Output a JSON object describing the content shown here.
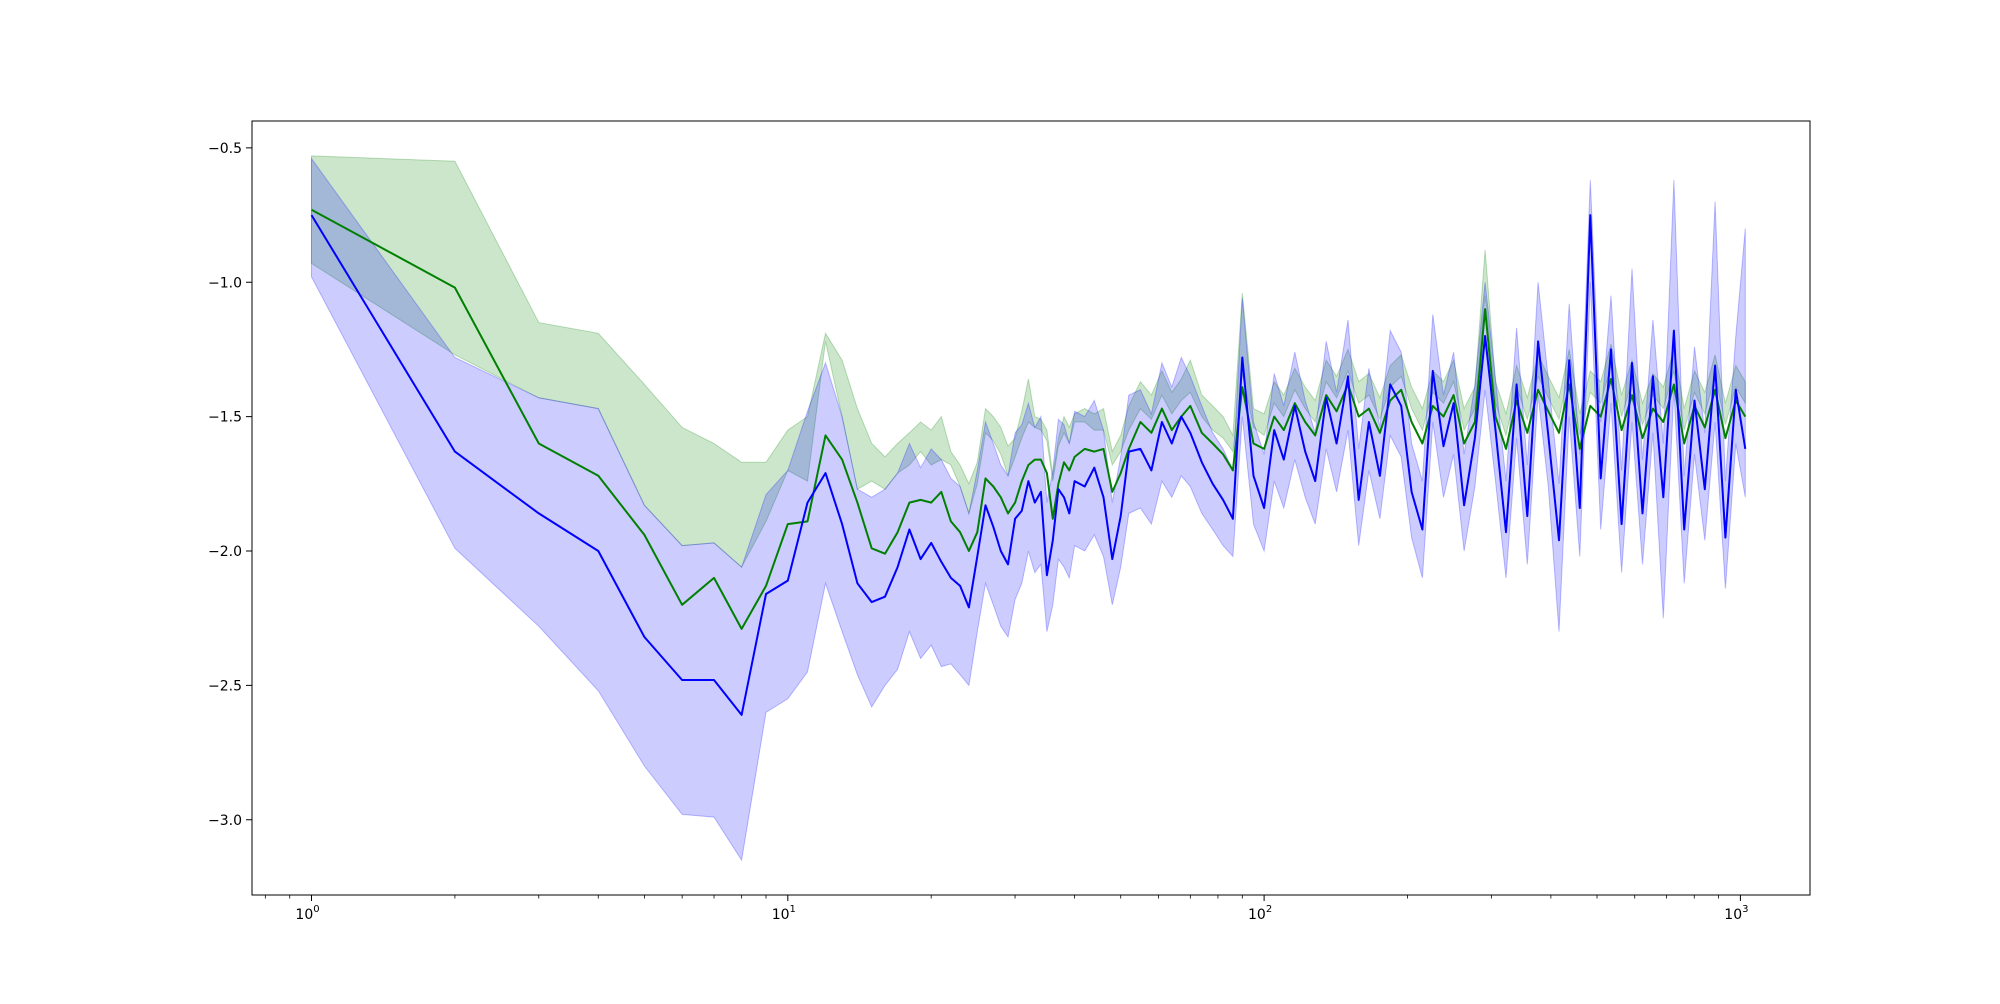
{
  "chart_data": {
    "type": "line",
    "xscale": "log",
    "xlim": [
      0.75,
      1400
    ],
    "ylim": [
      -3.28,
      -0.4
    ],
    "xticks": [
      {
        "value": 1,
        "base": "10",
        "exp": "0"
      },
      {
        "value": 10,
        "base": "10",
        "exp": "1"
      },
      {
        "value": 100,
        "base": "10",
        "exp": "2"
      },
      {
        "value": 1000,
        "base": "10",
        "exp": "3"
      }
    ],
    "yticks": [
      {
        "value": -0.5,
        "label": "−0.5"
      },
      {
        "value": -1.0,
        "label": "−1.0"
      },
      {
        "value": -1.5,
        "label": "−1.5"
      },
      {
        "value": -2.0,
        "label": "−2.0"
      },
      {
        "value": -2.5,
        "label": "−2.5"
      },
      {
        "value": -3.0,
        "label": "−3.0"
      }
    ],
    "grid": false,
    "legend": "none",
    "series": [
      {
        "color": "#008000",
        "band_alpha": 0.2,
        "x": [
          1,
          2,
          3,
          4,
          5,
          6,
          7,
          8,
          9,
          10,
          11,
          12,
          13,
          14,
          15,
          16,
          17,
          18,
          19,
          20,
          21,
          22,
          23,
          24,
          25,
          26,
          27,
          28,
          29,
          30,
          31,
          32,
          33,
          34,
          35,
          36,
          37,
          38,
          39,
          40,
          42,
          44,
          46,
          48,
          50,
          52,
          55,
          58,
          61,
          64,
          67,
          70,
          74,
          78,
          82,
          86,
          90,
          95,
          100,
          105,
          110,
          116,
          122,
          128,
          135,
          142,
          150,
          158,
          166,
          175,
          184,
          194,
          204,
          215,
          226,
          238,
          250,
          263,
          277,
          291,
          306,
          322,
          339,
          357,
          376,
          395,
          416,
          437,
          460,
          484,
          509,
          535,
          563,
          592,
          623,
          655,
          689,
          725,
          762,
          801,
          842,
          885,
          930,
          978,
          1024
        ],
        "y": [
          -0.73,
          -1.02,
          -1.6,
          -1.72,
          -1.94,
          -2.2,
          -2.1,
          -2.29,
          -2.13,
          -1.9,
          -1.89,
          -1.57,
          -1.66,
          -1.82,
          -1.99,
          -2.01,
          -1.93,
          -1.82,
          -1.81,
          -1.82,
          -1.78,
          -1.89,
          -1.93,
          -2.0,
          -1.93,
          -1.73,
          -1.76,
          -1.8,
          -1.86,
          -1.82,
          -1.74,
          -1.68,
          -1.66,
          -1.66,
          -1.71,
          -1.88,
          -1.75,
          -1.67,
          -1.7,
          -1.65,
          -1.62,
          -1.63,
          -1.62,
          -1.78,
          -1.71,
          -1.62,
          -1.52,
          -1.56,
          -1.47,
          -1.55,
          -1.5,
          -1.46,
          -1.56,
          -1.6,
          -1.64,
          -1.7,
          -1.39,
          -1.6,
          -1.62,
          -1.5,
          -1.55,
          -1.45,
          -1.52,
          -1.57,
          -1.42,
          -1.48,
          -1.38,
          -1.5,
          -1.47,
          -1.56,
          -1.44,
          -1.4,
          -1.52,
          -1.6,
          -1.46,
          -1.5,
          -1.42,
          -1.6,
          -1.52,
          -1.1,
          -1.5,
          -1.62,
          -1.44,
          -1.56,
          -1.4,
          -1.48,
          -1.56,
          -1.38,
          -1.62,
          -1.46,
          -1.5,
          -1.36,
          -1.55,
          -1.42,
          -1.58,
          -1.47,
          -1.52,
          -1.38,
          -1.6,
          -1.46,
          -1.54,
          -1.4,
          -1.58,
          -1.44,
          -1.5
        ],
        "lower": [
          -0.93,
          -1.27,
          -1.43,
          -1.47,
          -1.83,
          -1.98,
          -1.97,
          -2.06,
          -1.89,
          -1.7,
          -1.74,
          -1.22,
          -1.5,
          -1.77,
          -1.74,
          -1.77,
          -1.71,
          -1.68,
          -1.63,
          -1.68,
          -1.66,
          -1.68,
          -1.76,
          -1.86,
          -1.75,
          -1.56,
          -1.59,
          -1.64,
          -1.72,
          -1.65,
          -1.58,
          -1.52,
          -1.54,
          -1.55,
          -1.59,
          -1.74,
          -1.61,
          -1.56,
          -1.6,
          -1.52,
          -1.52,
          -1.55,
          -1.55,
          -1.68,
          -1.63,
          -1.55,
          -1.47,
          -1.51,
          -1.42,
          -1.49,
          -1.44,
          -1.41,
          -1.5,
          -1.55,
          -1.58,
          -1.63,
          -1.34,
          -1.54,
          -1.57,
          -1.45,
          -1.5,
          -1.4,
          -1.47,
          -1.52,
          -1.37,
          -1.43,
          -1.33,
          -1.45,
          -1.42,
          -1.51,
          -1.39,
          -1.35,
          -1.47,
          -1.55,
          -1.41,
          -1.45,
          -1.37,
          -1.55,
          -1.47,
          -1.05,
          -1.45,
          -1.57,
          -1.39,
          -1.51,
          -1.35,
          -1.43,
          -1.51,
          -1.33,
          -1.57,
          -1.41,
          -1.45,
          -1.31,
          -1.5,
          -1.37,
          -1.53,
          -1.42,
          -1.47,
          -1.33,
          -1.55,
          -1.41,
          -1.49,
          -1.35,
          -1.53,
          -1.39,
          -1.45
        ],
        "upper": [
          -0.53,
          -0.55,
          -1.15,
          -1.19,
          -1.38,
          -1.54,
          -1.6,
          -1.67,
          -1.67,
          -1.55,
          -1.5,
          -1.19,
          -1.29,
          -1.47,
          -1.6,
          -1.65,
          -1.6,
          -1.56,
          -1.52,
          -1.55,
          -1.5,
          -1.63,
          -1.68,
          -1.75,
          -1.67,
          -1.47,
          -1.5,
          -1.54,
          -1.61,
          -1.58,
          -1.48,
          -1.36,
          -1.5,
          -1.51,
          -1.55,
          -1.72,
          -1.58,
          -1.5,
          -1.54,
          -1.49,
          -1.47,
          -1.49,
          -1.47,
          -1.63,
          -1.57,
          -1.46,
          -1.37,
          -1.42,
          -1.33,
          -1.41,
          -1.36,
          -1.29,
          -1.42,
          -1.46,
          -1.5,
          -1.57,
          -1.04,
          -1.47,
          -1.49,
          -1.37,
          -1.42,
          -1.32,
          -1.39,
          -1.44,
          -1.29,
          -1.35,
          -1.25,
          -1.37,
          -1.34,
          -1.43,
          -1.31,
          -1.27,
          -1.39,
          -1.47,
          -1.33,
          -1.37,
          -1.29,
          -1.47,
          -1.39,
          -0.88,
          -1.37,
          -1.49,
          -1.31,
          -1.43,
          -1.27,
          -1.35,
          -1.43,
          -1.25,
          -1.49,
          -1.33,
          -1.37,
          -1.23,
          -1.42,
          -1.29,
          -1.45,
          -1.34,
          -1.39,
          -1.25,
          -1.47,
          -1.33,
          -1.41,
          -1.27,
          -1.45,
          -1.31,
          -1.37
        ]
      },
      {
        "color": "#0000ff",
        "band_alpha": 0.2,
        "x": [
          1,
          2,
          3,
          4,
          5,
          6,
          7,
          8,
          9,
          10,
          11,
          12,
          13,
          14,
          15,
          16,
          17,
          18,
          19,
          20,
          21,
          22,
          23,
          24,
          25,
          26,
          27,
          28,
          29,
          30,
          31,
          32,
          33,
          34,
          35,
          36,
          37,
          38,
          39,
          40,
          42,
          44,
          46,
          48,
          50,
          52,
          55,
          58,
          61,
          64,
          67,
          70,
          74,
          78,
          82,
          86,
          90,
          95,
          100,
          105,
          110,
          116,
          122,
          128,
          135,
          142,
          150,
          158,
          166,
          175,
          184,
          194,
          204,
          215,
          226,
          238,
          250,
          263,
          277,
          291,
          306,
          322,
          339,
          357,
          376,
          395,
          416,
          437,
          460,
          484,
          509,
          535,
          563,
          592,
          623,
          655,
          689,
          725,
          762,
          801,
          842,
          885,
          930,
          978,
          1024
        ],
        "y": [
          -0.75,
          -1.63,
          -1.86,
          -2.0,
          -2.32,
          -2.48,
          -2.48,
          -2.61,
          -2.16,
          -2.11,
          -1.82,
          -1.71,
          -1.9,
          -2.12,
          -2.19,
          -2.17,
          -2.06,
          -1.92,
          -2.03,
          -1.97,
          -2.04,
          -2.1,
          -2.13,
          -2.21,
          -2.02,
          -1.83,
          -1.91,
          -2.0,
          -2.05,
          -1.88,
          -1.85,
          -1.74,
          -1.82,
          -1.78,
          -2.09,
          -1.96,
          -1.77,
          -1.8,
          -1.86,
          -1.74,
          -1.76,
          -1.69,
          -1.8,
          -2.03,
          -1.87,
          -1.63,
          -1.62,
          -1.7,
          -1.52,
          -1.6,
          -1.5,
          -1.56,
          -1.67,
          -1.75,
          -1.81,
          -1.88,
          -1.28,
          -1.72,
          -1.84,
          -1.55,
          -1.66,
          -1.46,
          -1.63,
          -1.74,
          -1.43,
          -1.6,
          -1.35,
          -1.81,
          -1.52,
          -1.72,
          -1.38,
          -1.46,
          -1.78,
          -1.92,
          -1.33,
          -1.61,
          -1.45,
          -1.83,
          -1.58,
          -1.2,
          -1.55,
          -1.93,
          -1.38,
          -1.87,
          -1.22,
          -1.57,
          -1.96,
          -1.29,
          -1.84,
          -0.75,
          -1.73,
          -1.25,
          -1.9,
          -1.3,
          -1.86,
          -1.35,
          -1.8,
          -1.18,
          -1.92,
          -1.44,
          -1.77,
          -1.31,
          -1.95,
          -1.4,
          -1.62
        ],
        "lower": [
          -0.98,
          -1.99,
          -2.28,
          -2.52,
          -2.8,
          -2.98,
          -2.99,
          -3.15,
          -2.6,
          -2.55,
          -2.45,
          -2.12,
          -2.3,
          -2.46,
          -2.58,
          -2.5,
          -2.44,
          -2.3,
          -2.4,
          -2.35,
          -2.43,
          -2.42,
          -2.46,
          -2.5,
          -2.3,
          -2.12,
          -2.2,
          -2.28,
          -2.32,
          -2.18,
          -2.12,
          -2.0,
          -2.08,
          -2.05,
          -2.3,
          -2.2,
          -2.03,
          -2.06,
          -2.1,
          -1.98,
          -2.0,
          -1.94,
          -2.02,
          -2.2,
          -2.06,
          -1.86,
          -1.84,
          -1.9,
          -1.74,
          -1.8,
          -1.72,
          -1.76,
          -1.86,
          -1.92,
          -1.98,
          -2.02,
          -1.5,
          -1.9,
          -2.0,
          -1.74,
          -1.84,
          -1.66,
          -1.8,
          -1.9,
          -1.62,
          -1.78,
          -1.55,
          -1.98,
          -1.7,
          -1.88,
          -1.57,
          -1.65,
          -1.95,
          -2.1,
          -1.52,
          -1.8,
          -1.64,
          -2.0,
          -1.76,
          -1.4,
          -1.74,
          -2.1,
          -1.58,
          -2.05,
          -1.42,
          -1.76,
          -2.3,
          -1.5,
          -2.02,
          -1.0,
          -1.92,
          -1.45,
          -2.08,
          -1.52,
          -2.05,
          -1.56,
          -2.25,
          -1.4,
          -2.12,
          -1.64,
          -1.96,
          -1.52,
          -2.14,
          -1.6,
          -1.8
        ],
        "upper": [
          -0.54,
          -1.28,
          -1.43,
          -1.47,
          -1.83,
          -1.98,
          -1.97,
          -2.06,
          -1.79,
          -1.7,
          -1.48,
          -1.3,
          -1.5,
          -1.77,
          -1.8,
          -1.77,
          -1.71,
          -1.6,
          -1.69,
          -1.62,
          -1.66,
          -1.73,
          -1.76,
          -1.86,
          -1.7,
          -1.52,
          -1.6,
          -1.68,
          -1.72,
          -1.56,
          -1.53,
          -1.45,
          -1.54,
          -1.5,
          -1.82,
          -1.7,
          -1.51,
          -1.53,
          -1.6,
          -1.48,
          -1.5,
          -1.44,
          -1.55,
          -1.82,
          -1.65,
          -1.42,
          -1.4,
          -1.49,
          -1.3,
          -1.39,
          -1.28,
          -1.35,
          -1.46,
          -1.56,
          -1.62,
          -1.7,
          -1.06,
          -1.52,
          -1.64,
          -1.34,
          -1.46,
          -1.26,
          -1.44,
          -1.56,
          -1.22,
          -1.41,
          -1.14,
          -1.62,
          -1.32,
          -1.54,
          -1.18,
          -1.26,
          -1.6,
          -1.74,
          -1.12,
          -1.42,
          -1.26,
          -1.64,
          -1.38,
          -1.0,
          -1.36,
          -1.74,
          -1.17,
          -1.68,
          -1.0,
          -1.36,
          -1.75,
          -1.08,
          -1.64,
          -0.62,
          -1.52,
          -1.05,
          -1.7,
          -0.95,
          -1.66,
          -1.14,
          -1.6,
          -0.62,
          -1.72,
          -1.24,
          -1.56,
          -0.7,
          -1.74,
          -1.2,
          -0.8
        ]
      }
    ]
  }
}
